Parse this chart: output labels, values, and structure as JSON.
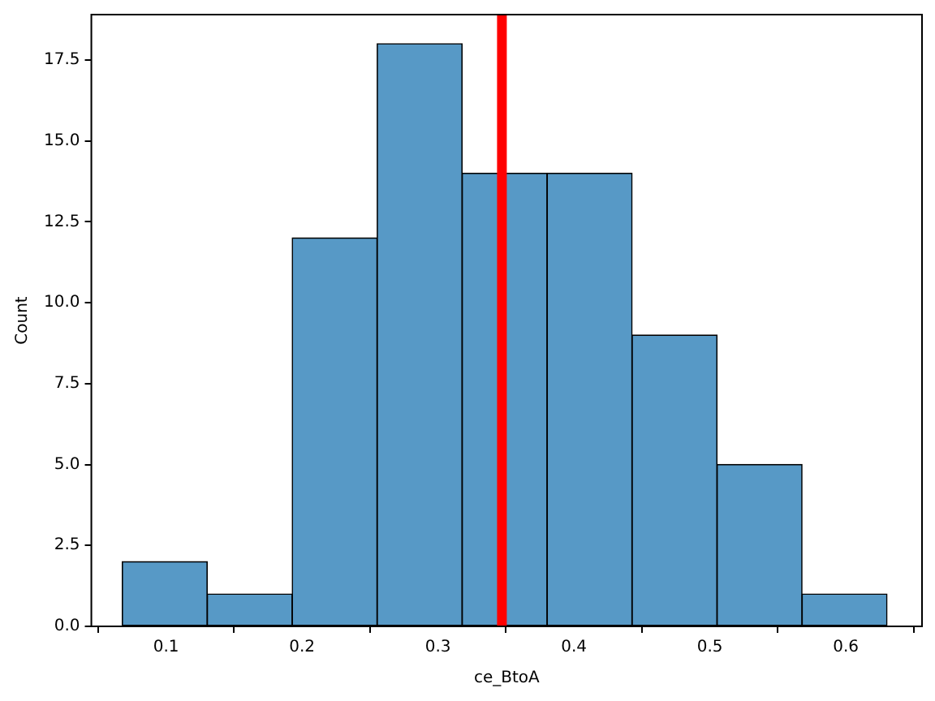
{
  "chart_data": {
    "type": "histogram",
    "xlabel": "ce_BtoA",
    "ylabel": "Count",
    "bins": [
      0.068,
      0.13,
      0.193,
      0.255,
      0.318,
      0.38,
      0.443,
      0.505,
      0.568,
      0.63
    ],
    "values": [
      2,
      1,
      12,
      18,
      14,
      14,
      9,
      5,
      1
    ],
    "color": "#5799c6",
    "xlim": [
      0.045,
      0.656
    ],
    "xticks": [
      0.1,
      0.2,
      0.3,
      0.4,
      0.5,
      0.6
    ],
    "ylim": [
      0,
      18.9
    ],
    "yticks": [
      {
        "value": 0,
        "label": "0.0"
      },
      2.5,
      {
        "value": 5,
        "label": "5.0"
      },
      7.5,
      {
        "value": 10,
        "label": "10.0"
      },
      12.5,
      {
        "value": 15,
        "label": "15.0"
      },
      17.5
    ],
    "ref_lines": [
      {
        "axis": "x",
        "value": 0.347,
        "color": "#ff0000"
      }
    ],
    "grid": false,
    "legend": false
  }
}
